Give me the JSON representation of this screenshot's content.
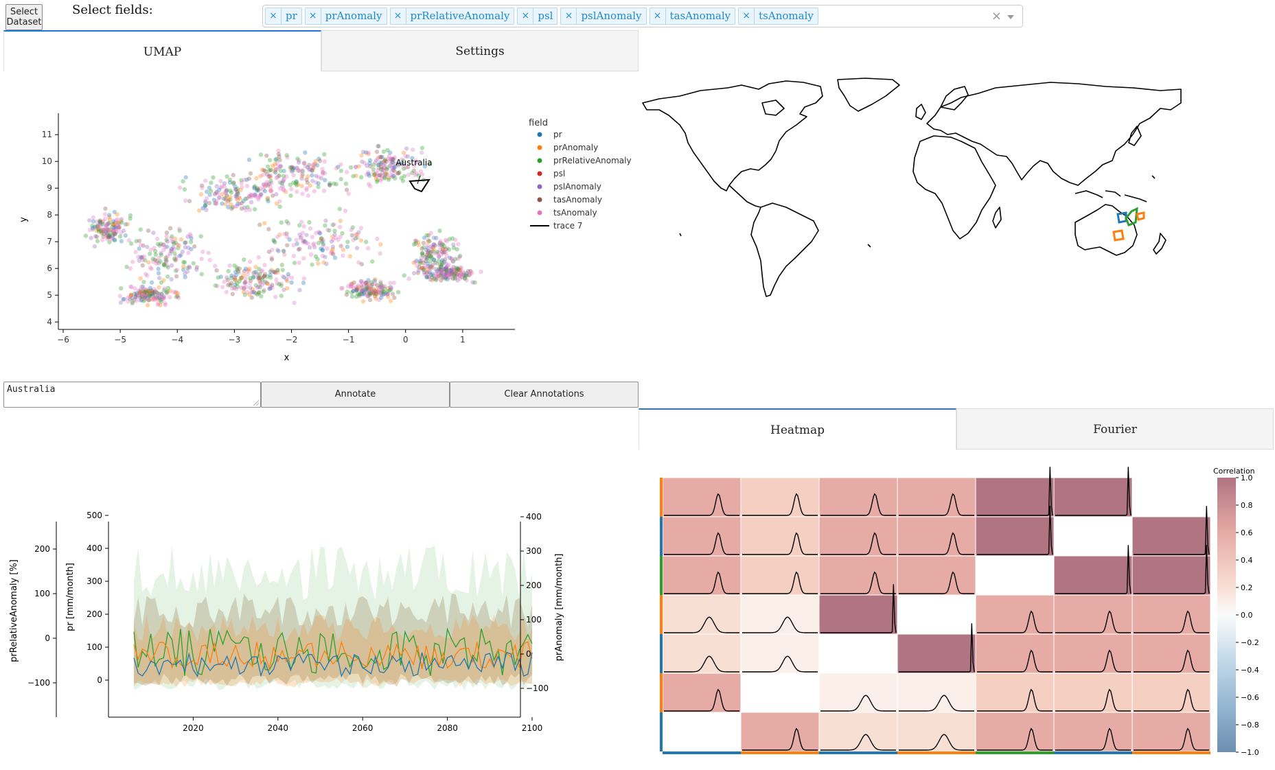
{
  "toolbar": {
    "select_dataset_line1": "Select",
    "select_dataset_line2": "Dataset",
    "select_fields_label": "Select fields:",
    "selected_fields": [
      "pr",
      "prAnomaly",
      "prRelativeAnomaly",
      "psl",
      "pslAnomaly",
      "tasAnomaly",
      "tsAnomaly"
    ],
    "clear_symbol": "×",
    "remove_symbol": "×"
  },
  "top_tabs": {
    "tab1": "UMAP",
    "tab2": "Settings",
    "active": "UMAP"
  },
  "umap": {
    "legend_title": "field",
    "legend": [
      {
        "name": "pr",
        "color": "#1f77b4"
      },
      {
        "name": "prAnomaly",
        "color": "#ff7f0e"
      },
      {
        "name": "prRelativeAnomaly",
        "color": "#2ca02c"
      },
      {
        "name": "psl",
        "color": "#d62728"
      },
      {
        "name": "pslAnomaly",
        "color": "#9467bd"
      },
      {
        "name": "tasAnomaly",
        "color": "#8c564b"
      },
      {
        "name": "tsAnomaly",
        "color": "#e377c2"
      },
      {
        "name": "trace 7",
        "color": "#000000",
        "line": true
      }
    ],
    "annotation": "Australia",
    "xlabel": "x",
    "ylabel": "y",
    "xticks": [
      "−6",
      "−5",
      "−4",
      "−3",
      "−2",
      "−1",
      "0",
      "1"
    ],
    "yticks": [
      "4",
      "5",
      "6",
      "7",
      "8",
      "9",
      "10",
      "11"
    ]
  },
  "annotate_panel": {
    "text_value": "Australia",
    "annotate_button": "Annotate",
    "clear_button": "Clear Annotations"
  },
  "bottom_tabs": {
    "tab1": "Heatmap",
    "tab2": "Fourier",
    "active": "Heatmap"
  },
  "timeseries": {
    "left_axis_label": "prRelativeAnomaly [%]",
    "left_ticks": [
      "200",
      "100",
      "0",
      "−100"
    ],
    "mid_axis_label": "pr [mm/month]",
    "mid_ticks": [
      "500",
      "400",
      "300",
      "200",
      "100",
      "0"
    ],
    "right_axis_label": "prAnomaly [mm/month]",
    "right_ticks": [
      "400",
      "300",
      "200",
      "100",
      "0",
      "−100"
    ],
    "xticks": [
      "2020",
      "2040",
      "2060",
      "2080",
      "2100"
    ]
  },
  "heatmap": {
    "colorbar_title": "Correlation",
    "colorbar_ticks": [
      "1.0",
      "0.8",
      "0.6",
      "0.4",
      "0.2",
      "0.0",
      "−0.2",
      "−0.4",
      "−0.6",
      "−0.8",
      "−1.0"
    ],
    "row_colors": [
      "#ff7f0e",
      "#1f77b4",
      "#2ca02c",
      "#ff7f0e",
      "#1f77b4",
      "#ff7f0e",
      "#1f77b4"
    ],
    "col_colors": [
      "#1f77b4",
      "#ff7f0e",
      "#1f77b4",
      "#ff7f0e",
      "#2ca02c",
      "#1f77b4",
      "#ff7f0e"
    ],
    "cells": [
      [
        0.55,
        0.3,
        0.55,
        0.55,
        1,
        1,
        null
      ],
      [
        0.55,
        0.3,
        0.55,
        0.55,
        1,
        null,
        1
      ],
      [
        0.55,
        0.3,
        0.55,
        0.55,
        null,
        1,
        1
      ],
      [
        0.2,
        0.08,
        1,
        null,
        0.55,
        0.55,
        0.55
      ],
      [
        0.2,
        0.08,
        null,
        1,
        0.55,
        0.55,
        0.55
      ],
      [
        0.55,
        null,
        0.08,
        0.08,
        0.3,
        0.3,
        0.3
      ],
      [
        null,
        0.55,
        0.2,
        0.2,
        0.55,
        0.55,
        0.55
      ]
    ]
  }
}
